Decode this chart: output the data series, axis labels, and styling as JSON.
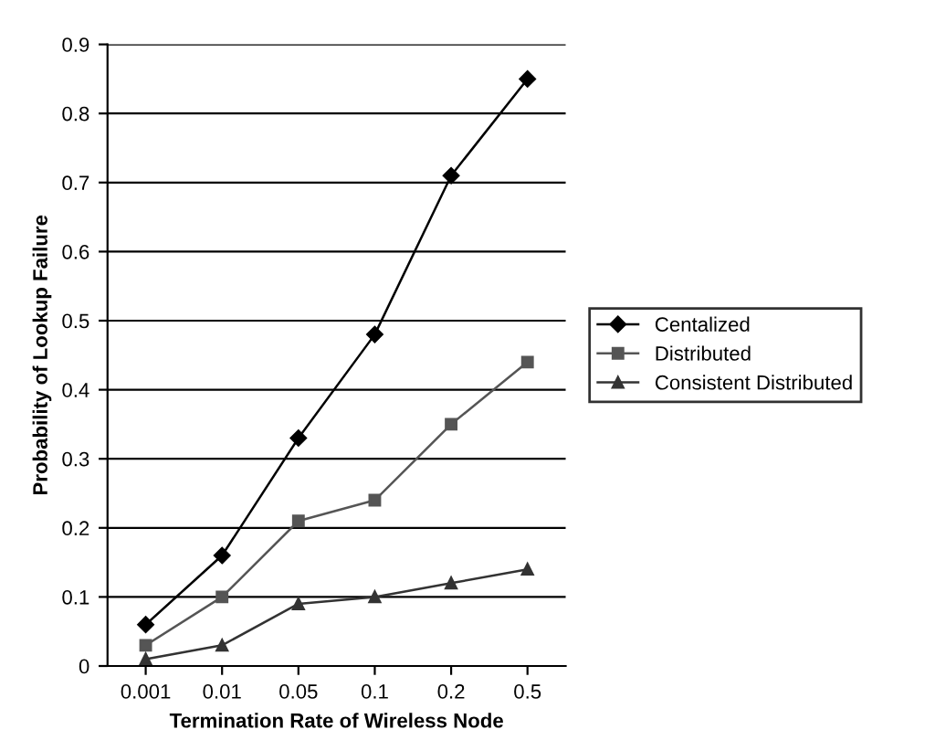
{
  "chart_data": {
    "type": "line",
    "xlabel": "Termination Rate of Wireless Node",
    "ylabel": "Probability of Lookup Failure",
    "categories": [
      "0.001",
      "0.01",
      "0.05",
      "0.1",
      "0.2",
      "0.5"
    ],
    "series": [
      {
        "name": "Centalized",
        "color": "#000000",
        "marker": "diamond",
        "values": [
          0.06,
          0.16,
          0.33,
          0.48,
          0.71,
          0.85
        ]
      },
      {
        "name": "Distributed",
        "color": "#555555",
        "marker": "square",
        "values": [
          0.03,
          0.1,
          0.21,
          0.24,
          0.35,
          0.44
        ]
      },
      {
        "name": "Consistent Distributed",
        "color": "#333333",
        "marker": "triangle",
        "values": [
          0.01,
          0.03,
          0.09,
          0.1,
          0.12,
          0.14
        ]
      }
    ],
    "ylim": [
      0,
      0.9
    ],
    "yticks": [
      0,
      0.1,
      0.2,
      0.3,
      0.4,
      0.5,
      0.6,
      0.7,
      0.8,
      0.9
    ],
    "grid": "y",
    "legend": "right",
    "line_style": "solid"
  }
}
